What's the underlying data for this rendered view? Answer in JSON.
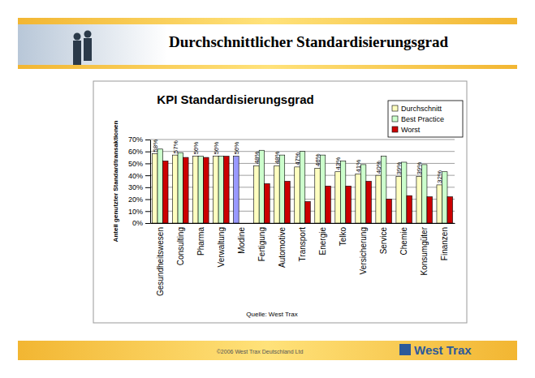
{
  "slide": {
    "title": "Durchschnittlicher Standardisierungsgrad",
    "footer": "©2006 West Trax Deutschland Ltd",
    "logo": "West Trax"
  },
  "chart_data": {
    "type": "bar",
    "title": "KPI Standardisierungsgrad",
    "y_label": "Anteil genutzter Standardtransaktionen",
    "source": "Quelle: West Trax",
    "categories": [
      "Gesundheitswesen",
      "Consulting",
      "Pharma",
      "Verwaltung",
      "Modine",
      "Fertigung",
      "Automotive",
      "Transport",
      "Energie",
      "Telko",
      "Versicherung",
      "Service",
      "Chemie",
      "Konsumgüter",
      "Finanzen"
    ],
    "series": [
      {
        "name": "Durchschnitt",
        "color": "#ffffc0",
        "colors": [
          "#ffffc0",
          "#ffffc0",
          "#ffffc0",
          "#ffffc0",
          "#9999ff",
          "#ffffc0",
          "#ffffc0",
          "#ffffc0",
          "#ffffc0",
          "#ffffc0",
          "#ffffc0",
          "#ffffc0",
          "#ffffc0",
          "#ffffc0",
          "#ffffc0"
        ],
        "values": [
          58,
          57,
          56,
          56,
          56,
          48,
          48,
          47,
          46,
          43,
          41,
          40,
          39,
          39,
          32
        ],
        "value_labels": [
          "58%",
          "57%",
          "56%",
          "56%",
          "56%",
          "48%",
          "48%",
          "47%",
          "46%",
          "43%",
          "41%",
          "40%",
          "39%",
          "39%",
          "32%"
        ],
        "data_labels": true
      },
      {
        "name": "Best Practice",
        "color": "#ccffcc",
        "values": [
          62,
          59,
          56,
          56,
          null,
          61,
          57,
          60,
          57,
          52,
          49,
          56,
          51,
          49,
          43
        ]
      },
      {
        "name": "Worst",
        "color": "#cc0000",
        "values": [
          52,
          55,
          55,
          56,
          null,
          33,
          35,
          18,
          31,
          31,
          35,
          20,
          23,
          22,
          22
        ]
      }
    ],
    "ylim": [
      0,
      70
    ],
    "yticks": [
      {
        "value": 0,
        "label": "0%"
      },
      {
        "value": 10,
        "label": "10%"
      },
      {
        "value": 20,
        "label": "20%"
      },
      {
        "value": 30,
        "label": "30%"
      },
      {
        "value": 40,
        "label": "40%"
      },
      {
        "value": 50,
        "label": "50%"
      },
      {
        "value": 60,
        "label": "60%"
      },
      {
        "value": 70,
        "label": "70%"
      }
    ],
    "grid": true,
    "legend": "upper right"
  }
}
